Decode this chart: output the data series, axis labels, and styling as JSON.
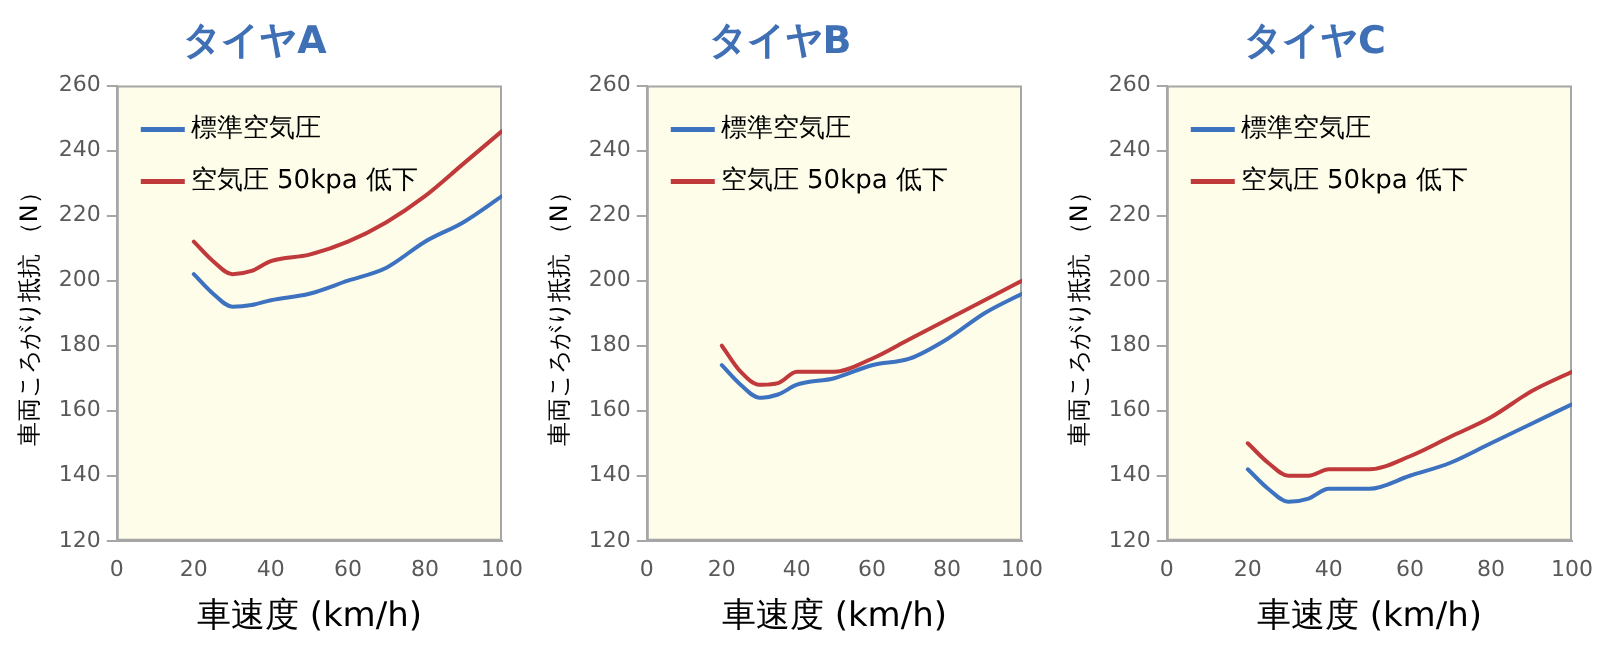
{
  "chart_data": [
    {
      "type": "line",
      "title": "タイヤA",
      "xlabel": "車速度 (km/h)",
      "ylabel": "車両ころがり抵抗 （N）",
      "xlim": [
        0,
        100
      ],
      "xticks": [
        0,
        20,
        40,
        60,
        80,
        100
      ],
      "ylim": [
        120,
        260
      ],
      "yticks": [
        120,
        140,
        160,
        180,
        200,
        220,
        240,
        260
      ],
      "grid": false,
      "legend": "top left",
      "x": [
        20,
        25,
        30,
        35,
        40,
        50,
        60,
        70,
        80,
        90,
        100
      ],
      "series": [
        {
          "name": "標準空気圧",
          "color": "#3d72c0",
          "values": [
            202,
            196,
            192,
            192.5,
            194,
            196,
            200,
            204,
            212,
            218,
            226
          ]
        },
        {
          "name": "空気圧 50kpa 低下",
          "color": "#c0393b",
          "values": [
            212,
            206,
            202,
            203,
            206,
            208,
            212,
            218,
            226,
            236,
            246
          ]
        }
      ]
    },
    {
      "type": "line",
      "title": "タイヤB",
      "xlabel": "車速度 (km/h)",
      "ylabel": "車両ころがり抵抗 （N）",
      "xlim": [
        0,
        100
      ],
      "xticks": [
        0,
        20,
        40,
        60,
        80,
        100
      ],
      "ylim": [
        120,
        260
      ],
      "yticks": [
        120,
        140,
        160,
        180,
        200,
        220,
        240,
        260
      ],
      "grid": false,
      "legend": "top left",
      "x": [
        20,
        25,
        30,
        35,
        40,
        50,
        60,
        70,
        80,
        90,
        100
      ],
      "series": [
        {
          "name": "標準空気圧",
          "color": "#3d72c0",
          "values": [
            174,
            168,
            164,
            165,
            168,
            170,
            174,
            176,
            182,
            190,
            196
          ]
        },
        {
          "name": "空気圧 50kpa 低下",
          "color": "#c0393b",
          "values": [
            180,
            172,
            168,
            168.5,
            172,
            172,
            176,
            182,
            188,
            194,
            200
          ]
        }
      ]
    },
    {
      "type": "line",
      "title": "タイヤC",
      "xlabel": "車速度 (km/h)",
      "ylabel": "車両ころがり抵抗 （N）",
      "xlim": [
        0,
        100
      ],
      "xticks": [
        0,
        20,
        40,
        60,
        80,
        100
      ],
      "ylim": [
        120,
        260
      ],
      "yticks": [
        120,
        140,
        160,
        180,
        200,
        220,
        240,
        260
      ],
      "grid": false,
      "legend": "top left",
      "x": [
        20,
        25,
        30,
        35,
        40,
        50,
        60,
        70,
        80,
        90,
        100
      ],
      "series": [
        {
          "name": "標準空気圧",
          "color": "#3d72c0",
          "values": [
            142,
            136,
            132,
            133,
            136,
            136,
            140,
            144,
            150,
            156,
            162
          ]
        },
        {
          "name": "空気圧 50kpa 低下",
          "color": "#c0393b",
          "values": [
            150,
            144,
            140,
            140,
            142,
            142,
            146,
            152,
            158,
            166,
            172
          ]
        }
      ]
    }
  ]
}
